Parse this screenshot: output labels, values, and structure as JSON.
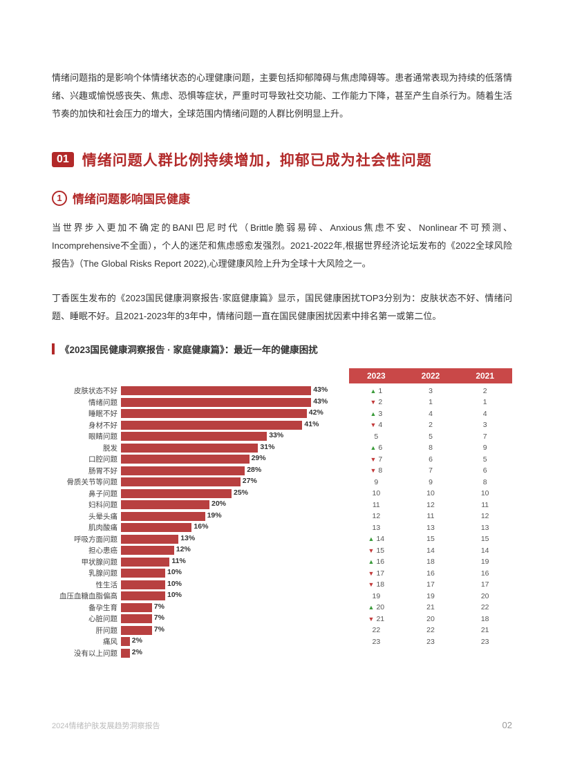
{
  "intro": "情绪问题指的是影响个体情绪状态的心理健康问题，主要包括抑郁障碍与焦虑障碍等。患者通常表现为持续的低落情绪、兴趣或愉悦感丧失、焦虑、恐惧等症状，严重时可导致社交功能、工作能力下降，甚至产生自杀行为。随着生活节奏的加快和社会压力的增大，全球范围内情绪问题的人群比例明显上升。",
  "section": {
    "num": "01",
    "title": "情绪问题人群比例持续增加，抑郁已成为社会性问题"
  },
  "subsection": {
    "num": "1",
    "title": "情绪问题影响国民健康"
  },
  "body1": "当世界步入更加不确定的BANI巴尼时代（Brittle脆弱易碎、Anxious焦虑不安、Nonlinear不可预测、Incomprehensive不全面），个人的迷茫和焦虑感愈发强烈。2021-2022年,根据世界经济论坛发布的《2022全球风险报告》（The Global Risks Report 2022),心理健康风险上升为全球十大风险之一。",
  "body2": "丁香医生发布的《2023国民健康洞察报告·家庭健康篇》显示，国民健康困扰TOP3分别为：皮肤状态不好、情绪问题、睡眠不好。且2021-2023年的3年中，情绪问题一直在国民健康困扰因素中排名第一或第二位。",
  "chart": {
    "title": "《2023国民健康洞察报告 · 家庭健康篇》：最近一年的健康困扰",
    "type": "bar",
    "bar_color": "#b84040",
    "max_value": 50,
    "years": [
      "2023",
      "2022",
      "2021"
    ],
    "items": [
      {
        "label": "皮肤状态不好",
        "value": 43,
        "ranks": [
          1,
          3,
          2
        ],
        "arrow": "up"
      },
      {
        "label": "情绪问题",
        "value": 43,
        "ranks": [
          2,
          1,
          1
        ],
        "arrow": "down"
      },
      {
        "label": "睡眠不好",
        "value": 42,
        "ranks": [
          3,
          4,
          4
        ],
        "arrow": "up"
      },
      {
        "label": "身材不好",
        "value": 41,
        "ranks": [
          4,
          2,
          3
        ],
        "arrow": "down"
      },
      {
        "label": "眼睛问题",
        "value": 33,
        "ranks": [
          5,
          5,
          7
        ],
        "arrow": ""
      },
      {
        "label": "脱发",
        "value": 31,
        "ranks": [
          6,
          8,
          9
        ],
        "arrow": "up"
      },
      {
        "label": "口腔问题",
        "value": 29,
        "ranks": [
          7,
          6,
          5
        ],
        "arrow": "down"
      },
      {
        "label": "肠胃不好",
        "value": 28,
        "ranks": [
          8,
          7,
          6
        ],
        "arrow": "down"
      },
      {
        "label": "骨质关节等问题",
        "value": 27,
        "ranks": [
          9,
          9,
          8
        ],
        "arrow": ""
      },
      {
        "label": "鼻子问题",
        "value": 25,
        "ranks": [
          10,
          10,
          10
        ],
        "arrow": ""
      },
      {
        "label": "妇科问题",
        "value": 20,
        "ranks": [
          11,
          12,
          11
        ],
        "arrow": ""
      },
      {
        "label": "头晕头痛",
        "value": 19,
        "ranks": [
          12,
          11,
          12
        ],
        "arrow": ""
      },
      {
        "label": "肌肉酸痛",
        "value": 16,
        "ranks": [
          13,
          13,
          13
        ],
        "arrow": ""
      },
      {
        "label": "呼吸方面问题",
        "value": 13,
        "ranks": [
          14,
          15,
          15
        ],
        "arrow": "up"
      },
      {
        "label": "担心患癌",
        "value": 12,
        "ranks": [
          15,
          14,
          14
        ],
        "arrow": "down"
      },
      {
        "label": "甲状腺问题",
        "value": 11,
        "ranks": [
          16,
          18,
          19
        ],
        "arrow": "up"
      },
      {
        "label": "乳腺问题",
        "value": 10,
        "ranks": [
          17,
          16,
          16
        ],
        "arrow": "down"
      },
      {
        "label": "性生活",
        "value": 10,
        "ranks": [
          18,
          17,
          17
        ],
        "arrow": "down"
      },
      {
        "label": "血压血糖血脂偏高",
        "value": 10,
        "ranks": [
          19,
          19,
          20
        ],
        "arrow": ""
      },
      {
        "label": "备孕生育",
        "value": 7,
        "ranks": [
          20,
          21,
          22
        ],
        "arrow": "up"
      },
      {
        "label": "心脏问题",
        "value": 7,
        "ranks": [
          21,
          20,
          18
        ],
        "arrow": "down"
      },
      {
        "label": "肝问题",
        "value": 7,
        "ranks": [
          22,
          22,
          21
        ],
        "arrow": ""
      },
      {
        "label": "痛风",
        "value": 2,
        "ranks": [
          23,
          23,
          23
        ],
        "arrow": ""
      },
      {
        "label": "没有以上问题",
        "value": 2,
        "ranks": null
      }
    ]
  },
  "footer": {
    "left": "2024情绪护肤发展趋势洞察报告",
    "page": "02"
  }
}
